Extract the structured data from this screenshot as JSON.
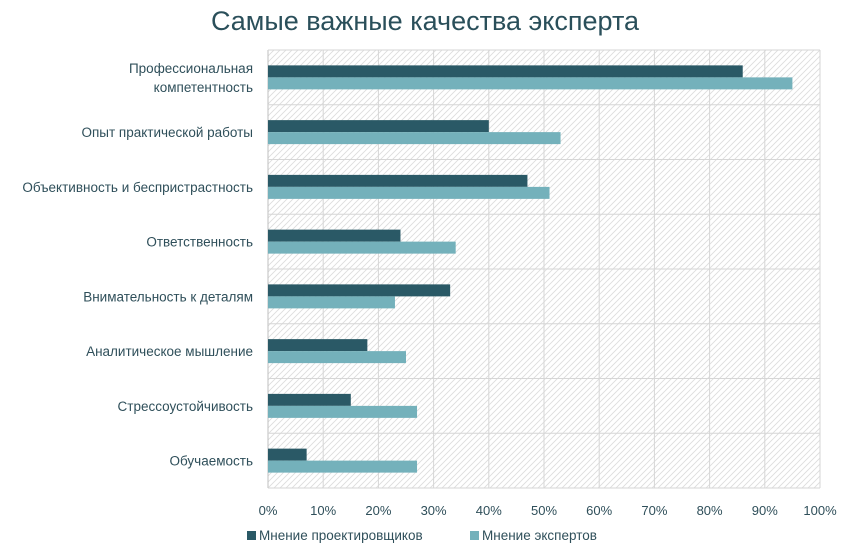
{
  "chart_data": {
    "type": "bar",
    "orientation": "horizontal",
    "title": "Самые важные качества эксперта",
    "categories": [
      [
        "Профессиональная",
        "компетентность"
      ],
      [
        "Опыт практической работы"
      ],
      [
        "Объективность и беспристрастность"
      ],
      [
        "Ответственность"
      ],
      [
        "Внимательность к деталям"
      ],
      [
        "Аналитическое мышление"
      ],
      [
        "Стрессоустойчивость"
      ],
      [
        "Обучаемость"
      ]
    ],
    "series": [
      {
        "name": "Мнение проектировщиков",
        "color": "#2a5966",
        "values": [
          86,
          40,
          47,
          24,
          33,
          18,
          15,
          7
        ]
      },
      {
        "name": "Мнение экспертов",
        "color": "#74b1bb",
        "values": [
          95,
          53,
          51,
          34,
          23,
          25,
          27,
          27
        ]
      }
    ],
    "xlim": [
      0,
      100
    ],
    "x_ticks": [
      0,
      10,
      20,
      30,
      40,
      50,
      60,
      70,
      80,
      90,
      100
    ],
    "x_tick_format": "percent",
    "grid": true,
    "legend_position": "bottom"
  }
}
